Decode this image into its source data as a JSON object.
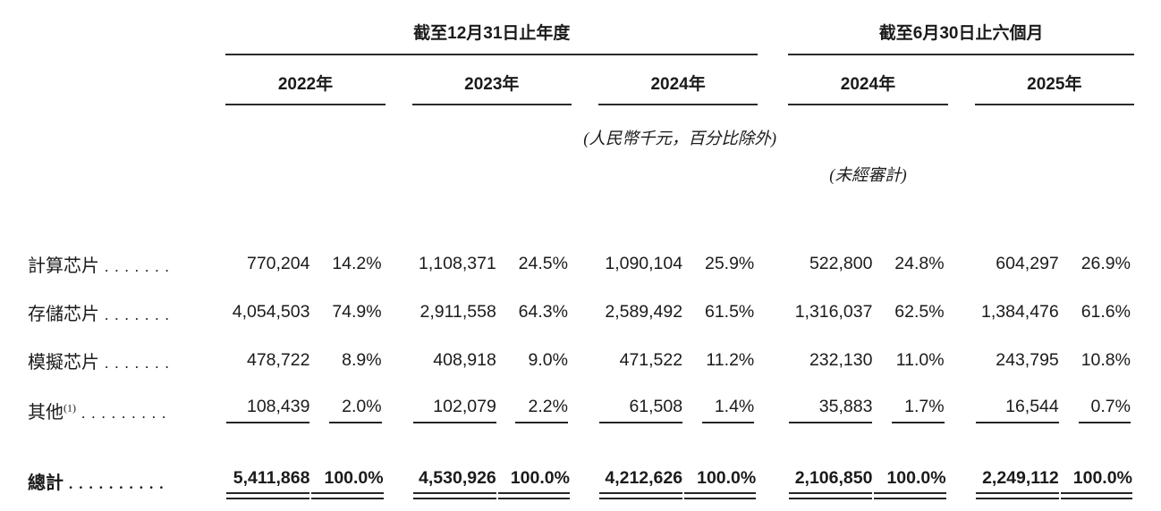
{
  "colors": {
    "text": "#1b1b1b",
    "rule": "#2a2a2a",
    "background": "#ffffff"
  },
  "header": {
    "annual": {
      "title": "截至12月31日止年度",
      "years": [
        "2022年",
        "2023年",
        "2024年"
      ]
    },
    "interim": {
      "title": "截至6月30日止六個月",
      "years": [
        "2024年",
        "2025年"
      ]
    }
  },
  "notes": {
    "units": "(人民幣千元，百分比除外)",
    "unaudited": "(未經審計)"
  },
  "rows": [
    {
      "label": "計算芯片",
      "dots": ".......",
      "values": [
        "770,204",
        "14.2%",
        "1,108,371",
        "24.5%",
        "1,090,104",
        "25.9%",
        "522,800",
        "24.8%",
        "604,297",
        "26.9%"
      ]
    },
    {
      "label": "存儲芯片",
      "dots": ".......",
      "values": [
        "4,054,503",
        "74.9%",
        "2,911,558",
        "64.3%",
        "2,589,492",
        "61.5%",
        "1,316,037",
        "62.5%",
        "1,384,476",
        "61.6%"
      ]
    },
    {
      "label": "模擬芯片",
      "dots": ".......",
      "values": [
        "478,722",
        "8.9%",
        "408,918",
        "9.0%",
        "471,522",
        "11.2%",
        "232,130",
        "11.0%",
        "243,795",
        "10.8%"
      ]
    },
    {
      "label": "其他",
      "sup": "(1)",
      "dots": ".........",
      "values": [
        "108,439",
        "2.0%",
        "102,079",
        "2.2%",
        "61,508",
        "1.4%",
        "35,883",
        "1.7%",
        "16,544",
        "0.7%"
      ]
    }
  ],
  "total": {
    "label": "總計",
    "dots": "..........",
    "values": [
      "5,411,868",
      "100.0%",
      "4,530,926",
      "100.0%",
      "4,212,626",
      "100.0%",
      "2,106,850",
      "100.0%",
      "2,249,112",
      "100.0%"
    ]
  }
}
